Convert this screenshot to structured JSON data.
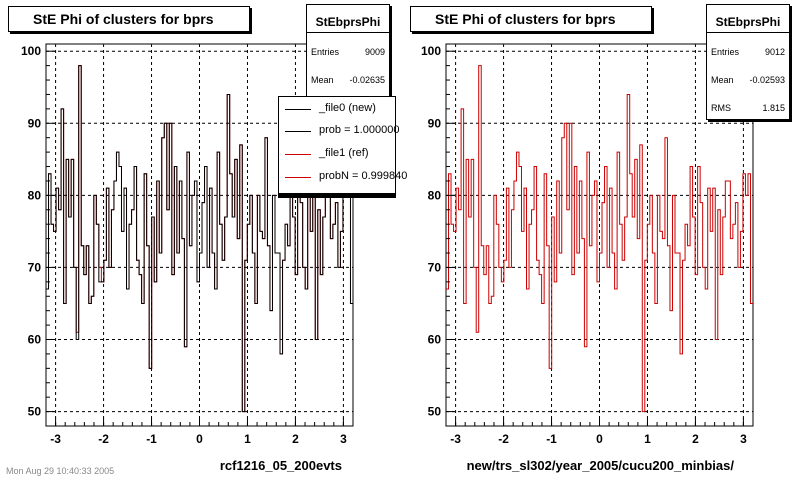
{
  "footer": "Mon Aug 29 10:40:33 2005",
  "chart_data": [
    {
      "type": "histogram",
      "title": "StE Phi of clusters for bprs",
      "xlabel": "rcf1216_05_200evts",
      "ylabel": "",
      "xlim": [
        -3.2,
        3.2
      ],
      "ylim": [
        48,
        101
      ],
      "x_ticks": [
        -3,
        -2,
        -1,
        0,
        1,
        2,
        3
      ],
      "y_ticks": [
        50,
        60,
        70,
        80,
        90,
        100
      ],
      "grid": true,
      "stats": {
        "name": "StEbprsPhi",
        "rows": [
          {
            "label": "Entries",
            "value": "9009"
          },
          {
            "label": "Mean",
            "value": "-0.02635"
          }
        ]
      },
      "legend": {
        "position": "top-right",
        "entries": [
          {
            "label": "_file0 (new)",
            "color": "#000000"
          },
          {
            "label": "prob = 1.000000",
            "color": "#000000"
          },
          {
            "label": "_file1 (ref)",
            "color": "#cc0000"
          },
          {
            "label": "probN = 0.999840",
            "color": "#cc0000"
          }
        ]
      },
      "bin_edges": [
        -3.2,
        3.2
      ],
      "series": [
        {
          "name": "_file1 (ref)",
          "color": "#cc0000",
          "values": [
            67,
            83,
            76,
            75,
            81,
            78,
            92,
            65,
            85,
            77,
            85,
            70,
            61,
            98,
            73,
            69,
            73,
            65,
            66,
            80,
            76,
            70,
            68,
            71,
            81,
            70,
            78,
            82,
            86,
            84,
            75,
            81,
            67,
            76,
            78,
            84,
            71,
            69,
            65,
            83,
            73,
            56,
            77,
            68,
            82,
            72,
            88,
            90,
            78,
            90,
            69,
            84,
            72,
            82,
            74,
            59,
            86,
            73,
            80,
            82,
            68,
            72,
            79,
            84,
            70,
            81,
            72,
            67,
            86,
            76,
            71,
            77,
            94,
            83,
            77,
            85,
            74,
            87,
            50,
            71,
            76,
            80,
            72,
            65,
            80,
            75,
            74,
            88,
            73,
            64,
            80,
            72,
            72,
            58,
            71,
            76,
            73,
            84,
            77,
            69,
            84,
            79,
            70,
            67,
            81,
            75,
            81,
            60,
            78,
            69,
            77,
            82,
            82,
            74,
            76,
            79,
            70,
            75,
            83,
            80,
            83,
            65
          ]
        },
        {
          "name": "_file0 (new)",
          "color": "#000000",
          "values": [
            67,
            83,
            76,
            75,
            81,
            78,
            92,
            65,
            85,
            77,
            85,
            70,
            60,
            98,
            73,
            69,
            73,
            65,
            66,
            80,
            76,
            68,
            68,
            71,
            81,
            70,
            78,
            82,
            86,
            84,
            75,
            81,
            67,
            76,
            78,
            84,
            71,
            69,
            65,
            83,
            73,
            56,
            77,
            68,
            82,
            72,
            88,
            90,
            78,
            90,
            69,
            84,
            72,
            82,
            74,
            59,
            86,
            73,
            80,
            82,
            68,
            72,
            79,
            84,
            70,
            81,
            72,
            67,
            86,
            76,
            71,
            77,
            94,
            83,
            77,
            85,
            74,
            87,
            50,
            71,
            76,
            80,
            72,
            65,
            80,
            75,
            74,
            88,
            73,
            64,
            80,
            72,
            72,
            58,
            71,
            76,
            73,
            84,
            77,
            69,
            84,
            79,
            70,
            67,
            81,
            75,
            81,
            60,
            78,
            69,
            77,
            82,
            82,
            74,
            76,
            79,
            70,
            75,
            83,
            80,
            83,
            65
          ]
        }
      ]
    },
    {
      "type": "histogram",
      "title": "StE Phi of clusters for bprs",
      "xlabel": "new/trs_sl302/year_2005/cucu200_minbias/",
      "ylabel": "",
      "xlim": [
        -3.2,
        3.2
      ],
      "ylim": [
        48,
        101
      ],
      "x_ticks": [
        -3,
        -2,
        -1,
        0,
        1,
        2,
        3
      ],
      "y_ticks": [
        50,
        60,
        70,
        80,
        90,
        100
      ],
      "grid": true,
      "stats": {
        "name": "StEbprsPhi",
        "rows": [
          {
            "label": "Entries",
            "value": "9012"
          },
          {
            "label": "Mean",
            "value": "-0.02593"
          },
          {
            "label": "RMS",
            "value": "1.815"
          }
        ]
      },
      "series": [
        {
          "name": "",
          "color": "#cc0000",
          "values": [
            67,
            83,
            76,
            75,
            81,
            78,
            92,
            65,
            85,
            77,
            85,
            70,
            61,
            98,
            73,
            69,
            73,
            65,
            66,
            80,
            76,
            70,
            68,
            71,
            81,
            70,
            78,
            82,
            86,
            84,
            75,
            81,
            67,
            76,
            78,
            84,
            71,
            69,
            65,
            83,
            73,
            56,
            77,
            68,
            82,
            72,
            88,
            90,
            78,
            90,
            69,
            84,
            72,
            82,
            74,
            59,
            86,
            73,
            80,
            82,
            68,
            72,
            79,
            84,
            70,
            81,
            72,
            67,
            86,
            76,
            71,
            77,
            94,
            83,
            77,
            85,
            74,
            87,
            50,
            71,
            76,
            80,
            72,
            65,
            80,
            75,
            74,
            88,
            73,
            64,
            80,
            72,
            72,
            58,
            71,
            76,
            73,
            84,
            77,
            69,
            84,
            79,
            70,
            67,
            81,
            75,
            81,
            60,
            78,
            69,
            77,
            82,
            82,
            74,
            76,
            79,
            70,
            75,
            83,
            80,
            83,
            65
          ]
        }
      ]
    }
  ]
}
